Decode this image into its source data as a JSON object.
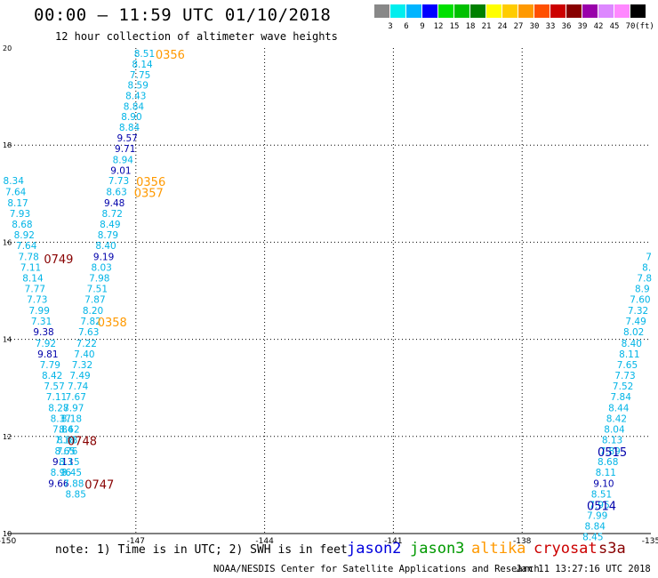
{
  "header": {
    "title": "00:00 – 11:59 UTC 01/10/2018",
    "subtitle": "12 hour collection of altimeter wave heights"
  },
  "colorbar": {
    "unit": "(ft)",
    "colors": [
      "#888888",
      "#00eeee",
      "#00b4ff",
      "#0000ff",
      "#00e000",
      "#00c000",
      "#008000",
      "#ffff00",
      "#ffcc00",
      "#ff9900",
      "#ff5000",
      "#cc0000",
      "#880000",
      "#9900aa",
      "#dd88ff",
      "#ff88ff",
      "#000000"
    ],
    "labels": [
      "3",
      "6",
      "9",
      "12",
      "15",
      "18",
      "21",
      "24",
      "27",
      "30",
      "33",
      "36",
      "39",
      "42",
      "45",
      "70"
    ]
  },
  "map": {
    "lon_range": [
      -150,
      -135
    ],
    "lat_range": [
      10,
      20
    ],
    "x_ticks": [
      "-150",
      "-147",
      "-144",
      "-141",
      "-138",
      "-135"
    ],
    "y_ticks": [
      "20",
      "18",
      "16",
      "14",
      "12",
      "10"
    ],
    "color_light": "#00b4e6",
    "color_dark": "#0000aa",
    "color_altika": "#ff9900",
    "color_cryosat": "#880000"
  },
  "swh_points": [
    {
      "v": "8.51",
      "lon": -146.8,
      "lat": 19.82,
      "c": "l"
    },
    {
      "v": "8.14",
      "lon": -146.85,
      "lat": 19.6,
      "c": "l"
    },
    {
      "v": "7.75",
      "lon": -146.9,
      "lat": 19.38,
      "c": "l"
    },
    {
      "v": "8.59",
      "lon": -146.95,
      "lat": 19.17,
      "c": "l"
    },
    {
      "v": "8.43",
      "lon": -147.0,
      "lat": 18.95,
      "c": "l"
    },
    {
      "v": "8.84",
      "lon": -147.05,
      "lat": 18.73,
      "c": "l"
    },
    {
      "v": "8.90",
      "lon": -147.1,
      "lat": 18.52,
      "c": "l"
    },
    {
      "v": "8.84",
      "lon": -147.15,
      "lat": 18.3,
      "c": "l"
    },
    {
      "v": "9.57",
      "lon": -147.2,
      "lat": 18.08,
      "c": "d"
    },
    {
      "v": "9.71",
      "lon": -147.25,
      "lat": 17.86,
      "c": "d"
    },
    {
      "v": "8.94",
      "lon": -147.3,
      "lat": 17.63,
      "c": "l"
    },
    {
      "v": "9.01",
      "lon": -147.35,
      "lat": 17.41,
      "c": "d"
    },
    {
      "v": "7.73",
      "lon": -147.4,
      "lat": 17.2,
      "c": "l"
    },
    {
      "v": "8.63",
      "lon": -147.45,
      "lat": 16.97,
      "c": "l"
    },
    {
      "v": "9.48",
      "lon": -147.5,
      "lat": 16.74,
      "c": "d"
    },
    {
      "v": "8.72",
      "lon": -147.55,
      "lat": 16.52,
      "c": "l"
    },
    {
      "v": "8.49",
      "lon": -147.6,
      "lat": 16.3,
      "c": "l"
    },
    {
      "v": "8.79",
      "lon": -147.65,
      "lat": 16.08,
      "c": "l"
    },
    {
      "v": "8.40",
      "lon": -147.7,
      "lat": 15.86,
      "c": "l"
    },
    {
      "v": "9.19",
      "lon": -147.75,
      "lat": 15.63,
      "c": "d"
    },
    {
      "v": "8.03",
      "lon": -147.8,
      "lat": 15.41,
      "c": "l"
    },
    {
      "v": "7.98",
      "lon": -147.85,
      "lat": 15.19,
      "c": "l"
    },
    {
      "v": "7.51",
      "lon": -147.9,
      "lat": 14.97,
      "c": "l"
    },
    {
      "v": "7.87",
      "lon": -147.95,
      "lat": 14.75,
      "c": "l"
    },
    {
      "v": "8.20",
      "lon": -148.0,
      "lat": 14.52,
      "c": "l"
    },
    {
      "v": "7.82",
      "lon": -148.05,
      "lat": 14.3,
      "c": "l"
    },
    {
      "v": "7.63",
      "lon": -148.1,
      "lat": 14.08,
      "c": "l"
    },
    {
      "v": "7.22",
      "lon": -148.15,
      "lat": 13.85,
      "c": "l"
    },
    {
      "v": "7.40",
      "lon": -148.2,
      "lat": 13.63,
      "c": "l"
    },
    {
      "v": "7.32",
      "lon": -148.25,
      "lat": 13.41,
      "c": "l"
    },
    {
      "v": "7.49",
      "lon": -148.3,
      "lat": 13.19,
      "c": "l"
    },
    {
      "v": "7.74",
      "lon": -148.35,
      "lat": 12.97,
      "c": "l"
    },
    {
      "v": "7.67",
      "lon": -148.4,
      "lat": 12.75,
      "c": "l"
    },
    {
      "v": "7.97",
      "lon": -148.45,
      "lat": 12.52,
      "c": "l"
    },
    {
      "v": "8.18",
      "lon": -148.5,
      "lat": 12.3,
      "c": "l"
    },
    {
      "v": "8.62",
      "lon": -148.55,
      "lat": 12.08,
      "c": "l"
    },
    {
      "v": "8.48",
      "lon": -148.6,
      "lat": 11.86,
      "c": "l"
    },
    {
      "v": "8.65",
      "lon": -148.65,
      "lat": 11.63,
      "c": "l"
    },
    {
      "v": "9.13",
      "lon": -148.7,
      "lat": 11.41,
      "c": "d"
    },
    {
      "v": "8.96",
      "lon": -148.75,
      "lat": 11.19,
      "c": "l"
    },
    {
      "v": "9.66",
      "lon": -148.8,
      "lat": 10.96,
      "c": "d"
    },
    {
      "v": "8.34",
      "lon": -149.85,
      "lat": 17.2,
      "c": "l"
    },
    {
      "v": "7.64",
      "lon": -149.8,
      "lat": 16.97,
      "c": "l"
    },
    {
      "v": "8.17",
      "lon": -149.75,
      "lat": 16.74,
      "c": "l"
    },
    {
      "v": "7.93",
      "lon": -149.7,
      "lat": 16.52,
      "c": "l"
    },
    {
      "v": "8.68",
      "lon": -149.65,
      "lat": 16.3,
      "c": "l"
    },
    {
      "v": "8.92",
      "lon": -149.6,
      "lat": 16.08,
      "c": "l"
    },
    {
      "v": "7.64",
      "lon": -149.55,
      "lat": 15.86,
      "c": "l"
    },
    {
      "v": "7.78",
      "lon": -149.5,
      "lat": 15.63,
      "c": "l"
    },
    {
      "v": "7.11",
      "lon": -149.45,
      "lat": 15.41,
      "c": "l"
    },
    {
      "v": "8.14",
      "lon": -149.4,
      "lat": 15.19,
      "c": "l"
    },
    {
      "v": "7.77",
      "lon": -149.35,
      "lat": 14.97,
      "c": "l"
    },
    {
      "v": "7.73",
      "lon": -149.3,
      "lat": 14.75,
      "c": "l"
    },
    {
      "v": "7.99",
      "lon": -149.25,
      "lat": 14.52,
      "c": "l"
    },
    {
      "v": "7.31",
      "lon": -149.2,
      "lat": 14.3,
      "c": "l"
    },
    {
      "v": "9.38",
      "lon": -149.15,
      "lat": 14.08,
      "c": "d"
    },
    {
      "v": "7.92",
      "lon": -149.1,
      "lat": 13.85,
      "c": "l"
    },
    {
      "v": "9.81",
      "lon": -149.05,
      "lat": 13.63,
      "c": "d"
    },
    {
      "v": "7.79",
      "lon": -149.0,
      "lat": 13.41,
      "c": "l"
    },
    {
      "v": "8.42",
      "lon": -148.95,
      "lat": 13.19,
      "c": "l"
    },
    {
      "v": "7.57",
      "lon": -148.9,
      "lat": 12.97,
      "c": "l"
    },
    {
      "v": "7.11",
      "lon": -148.85,
      "lat": 12.75,
      "c": "l"
    },
    {
      "v": "8.28",
      "lon": -148.8,
      "lat": 12.52,
      "c": "l"
    },
    {
      "v": "8.37",
      "lon": -148.75,
      "lat": 12.3,
      "c": "l"
    },
    {
      "v": "7.84",
      "lon": -148.7,
      "lat": 12.08,
      "c": "l"
    },
    {
      "v": "7.18",
      "lon": -148.65,
      "lat": 11.86,
      "c": "l"
    },
    {
      "v": "7.76",
      "lon": -148.6,
      "lat": 11.63,
      "c": "l"
    },
    {
      "v": "8.15",
      "lon": -148.55,
      "lat": 11.41,
      "c": "l"
    },
    {
      "v": "8.45",
      "lon": -148.5,
      "lat": 11.19,
      "c": "l"
    },
    {
      "v": "7.88",
      "lon": -148.45,
      "lat": 10.96,
      "c": "l"
    },
    {
      "v": "8.85",
      "lon": -148.4,
      "lat": 10.74,
      "c": "l"
    },
    {
      "v": "7",
      "lon": -135.05,
      "lat": 15.63,
      "c": "l"
    },
    {
      "v": "8.",
      "lon": -135.1,
      "lat": 15.41,
      "c": "l"
    },
    {
      "v": "7.8",
      "lon": -135.15,
      "lat": 15.19,
      "c": "l"
    },
    {
      "v": "8.9",
      "lon": -135.2,
      "lat": 14.97,
      "c": "l"
    },
    {
      "v": "7.60",
      "lon": -135.25,
      "lat": 14.75,
      "c": "l"
    },
    {
      "v": "7.32",
      "lon": -135.3,
      "lat": 14.52,
      "c": "l"
    },
    {
      "v": "7.49",
      "lon": -135.35,
      "lat": 14.3,
      "c": "l"
    },
    {
      "v": "8.02",
      "lon": -135.4,
      "lat": 14.08,
      "c": "l"
    },
    {
      "v": "8.40",
      "lon": -135.45,
      "lat": 13.85,
      "c": "l"
    },
    {
      "v": "8.11",
      "lon": -135.5,
      "lat": 13.63,
      "c": "l"
    },
    {
      "v": "7.65",
      "lon": -135.55,
      "lat": 13.41,
      "c": "l"
    },
    {
      "v": "7.73",
      "lon": -135.6,
      "lat": 13.19,
      "c": "l"
    },
    {
      "v": "7.52",
      "lon": -135.65,
      "lat": 12.97,
      "c": "l"
    },
    {
      "v": "7.84",
      "lon": -135.7,
      "lat": 12.75,
      "c": "l"
    },
    {
      "v": "8.44",
      "lon": -135.75,
      "lat": 12.52,
      "c": "l"
    },
    {
      "v": "8.42",
      "lon": -135.8,
      "lat": 12.3,
      "c": "l"
    },
    {
      "v": "8.04",
      "lon": -135.85,
      "lat": 12.08,
      "c": "l"
    },
    {
      "v": "8.13",
      "lon": -135.9,
      "lat": 11.86,
      "c": "l"
    },
    {
      "v": "7.89",
      "lon": -135.95,
      "lat": 11.63,
      "c": "l"
    },
    {
      "v": "8.68",
      "lon": -136.0,
      "lat": 11.41,
      "c": "l"
    },
    {
      "v": "8.11",
      "lon": -136.05,
      "lat": 11.19,
      "c": "l"
    },
    {
      "v": "9.10",
      "lon": -136.1,
      "lat": 10.96,
      "c": "d"
    },
    {
      "v": "8.51",
      "lon": -136.15,
      "lat": 10.74,
      "c": "l"
    },
    {
      "v": "7.95",
      "lon": -136.2,
      "lat": 10.52,
      "c": "l"
    },
    {
      "v": "7.99",
      "lon": -136.25,
      "lat": 10.3,
      "c": "l"
    },
    {
      "v": "8.84",
      "lon": -136.3,
      "lat": 10.08,
      "c": "l"
    },
    {
      "v": "8.45",
      "lon": -136.35,
      "lat": 9.86,
      "c": "l"
    }
  ],
  "pass_labels": [
    {
      "t": "0356",
      "lon": -146.2,
      "lat": 19.82,
      "c": "altika"
    },
    {
      "t": "0356",
      "lon": -146.65,
      "lat": 17.2,
      "c": "altika"
    },
    {
      "t": "0357",
      "lon": -146.7,
      "lat": 16.97,
      "c": "altika"
    },
    {
      "t": "0358",
      "lon": -147.55,
      "lat": 14.3,
      "c": "altika"
    },
    {
      "t": "0749",
      "lon": -148.8,
      "lat": 15.6,
      "c": "cryosat"
    },
    {
      "t": "0748",
      "lon": -148.25,
      "lat": 11.86,
      "c": "cryosat"
    },
    {
      "t": "0747",
      "lon": -147.85,
      "lat": 10.96,
      "c": "cryosat"
    },
    {
      "t": "0515",
      "lon": -135.9,
      "lat": 11.63,
      "c": "dark"
    },
    {
      "t": "0514",
      "lon": -136.15,
      "lat": 10.52,
      "c": "dark"
    }
  ],
  "footer": {
    "note": "note: 1) Time is in UTC; 2) SWH is in feet",
    "satellites": [
      {
        "name": "jason2",
        "color": "#0000dd"
      },
      {
        "name": "jason3",
        "color": "#009900"
      },
      {
        "name": "altika",
        "color": "#ff9900"
      },
      {
        "name": "cryosat",
        "color": "#cc0000"
      },
      {
        "name": "s3a",
        "color": "#880000"
      }
    ],
    "credit": "NOAA/NESDIS Center for Satellite Applications and Research",
    "timestamp": "Jan 11 13:27:16 UTC 2018"
  }
}
